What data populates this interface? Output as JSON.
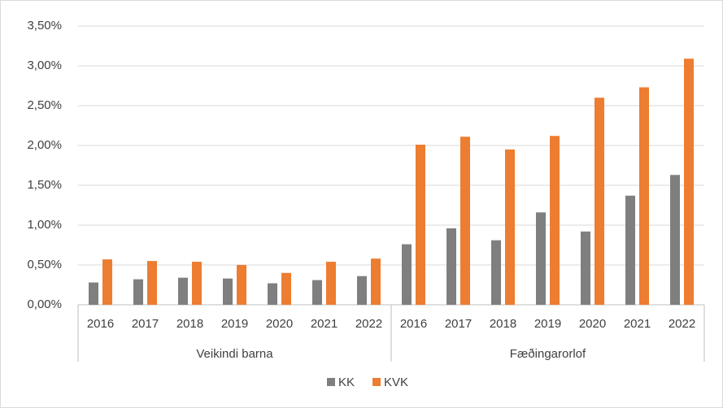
{
  "chart_data": {
    "type": "bar",
    "groups": [
      {
        "name": "Veikindi barna",
        "categories": [
          "2016",
          "2017",
          "2018",
          "2019",
          "2020",
          "2021",
          "2022"
        ]
      },
      {
        "name": "Fæðingarorlof",
        "categories": [
          "2016",
          "2017",
          "2018",
          "2019",
          "2020",
          "2021",
          "2022"
        ]
      }
    ],
    "series": [
      {
        "name": "KK",
        "color": "#7f7f7f",
        "values": [
          0.28,
          0.32,
          0.34,
          0.33,
          0.27,
          0.31,
          0.36,
          0.76,
          0.96,
          0.81,
          1.16,
          0.92,
          1.37,
          1.63
        ]
      },
      {
        "name": "KVK",
        "color": "#ed7d31",
        "values": [
          0.57,
          0.55,
          0.54,
          0.5,
          0.4,
          0.54,
          0.58,
          2.01,
          2.11,
          1.95,
          2.12,
          2.6,
          2.73,
          3.09
        ]
      }
    ],
    "ylim": [
      0,
      3.5
    ],
    "yticks": [
      {
        "value": 0,
        "label": "0,00%"
      },
      {
        "value": 0.5,
        "label": "0,50%"
      },
      {
        "value": 1,
        "label": "1,00%"
      },
      {
        "value": 1.5,
        "label": "1,50%"
      },
      {
        "value": 2,
        "label": "2,00%"
      },
      {
        "value": 2.5,
        "label": "2,50%"
      },
      {
        "value": 3,
        "label": "3,00%"
      },
      {
        "value": 3.5,
        "label": "3,50%"
      }
    ],
    "grid": true,
    "legend": "bottom"
  }
}
